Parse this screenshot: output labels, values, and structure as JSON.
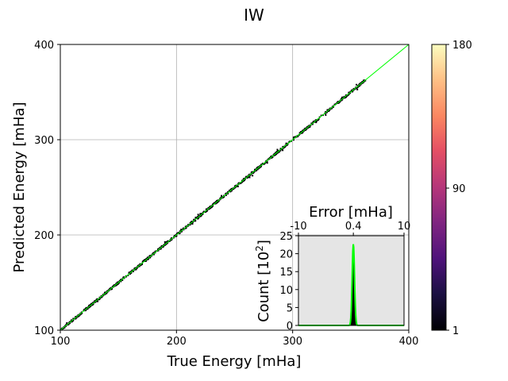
{
  "chart_data": [
    {
      "type": "scatter",
      "title": "IW",
      "xlabel": "True Energy [mHa]",
      "ylabel": "Predicted Energy [mHa]",
      "xlim": [
        100,
        400
      ],
      "ylim": [
        100,
        400
      ],
      "xticks": [
        "100",
        "200",
        "300",
        "400"
      ],
      "yticks": [
        "100",
        "200",
        "300",
        "400"
      ],
      "grid": true,
      "reference_line": {
        "from": [
          100,
          100
        ],
        "to": [
          400,
          400
        ],
        "color": "#00ff00"
      },
      "point_x_range": [
        100,
        363
      ],
      "point_color": "#000000",
      "colorbar": {
        "colormap": "magma",
        "ticks": [
          "1",
          "90",
          "180"
        ],
        "tick_values": [
          1,
          90,
          180
        ],
        "min": 1,
        "max": 180
      }
    },
    {
      "type": "area",
      "inset": true,
      "xlabel": "Error [mHa]",
      "ylabel": "Count [10^2]",
      "ylabel_base": "Count [10",
      "ylabel_exp": "2",
      "ylabel_close": "]",
      "xlim": [
        -10,
        10
      ],
      "ylim": [
        0,
        25
      ],
      "xticks": [
        "-10",
        "0.4",
        "10"
      ],
      "xtick_values": [
        -10,
        0.4,
        10
      ],
      "yticks": [
        "0",
        "5",
        "10",
        "15",
        "20",
        "25"
      ],
      "peak_center": 0.4,
      "peak_height": 22.7,
      "peak_width": 0.22,
      "fill_color": "#000000",
      "line_color": "#00ff00",
      "background": "#e5e5e5"
    }
  ]
}
